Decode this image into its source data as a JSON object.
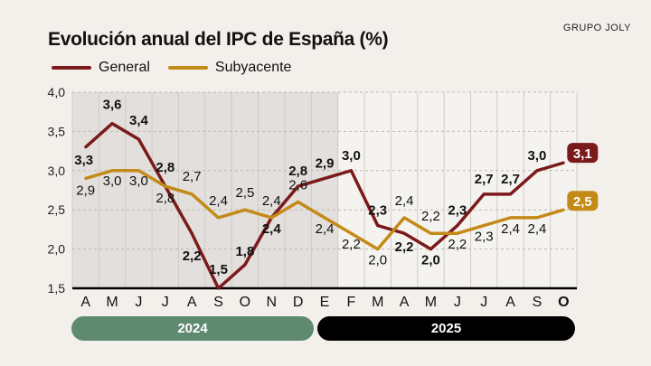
{
  "brand": "GRUPO JOLY",
  "chart_data": {
    "type": "line",
    "title": "Evolución anual del IPC de España (%)",
    "categories": [
      "A",
      "M",
      "J",
      "J",
      "A",
      "S",
      "O",
      "N",
      "D",
      "E",
      "F",
      "M",
      "A",
      "M",
      "J",
      "J",
      "A",
      "S",
      "O"
    ],
    "years": [
      {
        "label": "2024",
        "color": "#5e8a6f"
      },
      {
        "label": "2025",
        "color": "#000000"
      }
    ],
    "ylim": [
      1.5,
      4.0
    ],
    "yticks": [
      "1,5",
      "2,0",
      "2,5",
      "3,0",
      "3,5",
      "4,0"
    ],
    "grid": true,
    "legend_position": "top-left",
    "series": [
      {
        "name": "General",
        "color": "#7b1a1a",
        "values": [
          3.3,
          3.6,
          3.4,
          2.8,
          2.2,
          1.5,
          1.8,
          2.4,
          2.8,
          2.9,
          3.0,
          2.3,
          2.2,
          2.0,
          2.3,
          2.7,
          2.7,
          3.0,
          3.1
        ],
        "labels": [
          "3,3",
          "3,6",
          "3,4",
          "2,8",
          "2,2",
          "1,5",
          "1,8",
          "2,4",
          "2,8",
          "2,9",
          "3,0",
          "2,3",
          "2,2",
          "2,0",
          "2,3",
          "2,7",
          "2,7",
          "3,0",
          "3,1"
        ]
      },
      {
        "name": "Subyacente",
        "color": "#c48a18",
        "values": [
          2.9,
          3.0,
          3.0,
          2.8,
          2.7,
          2.4,
          2.5,
          2.4,
          2.6,
          2.4,
          2.2,
          2.0,
          2.4,
          2.2,
          2.2,
          2.3,
          2.4,
          2.4,
          2.5
        ],
        "labels": [
          "2,9",
          "3,0",
          "3,0",
          "2,8",
          "2,7",
          "2,4",
          "2,5",
          "2,4",
          "2,6",
          "2,4",
          "2,2",
          "2,0",
          "2,4",
          "2,2",
          "2,2",
          "2,3",
          "2,4",
          "2,4",
          "2,5"
        ]
      }
    ]
  }
}
